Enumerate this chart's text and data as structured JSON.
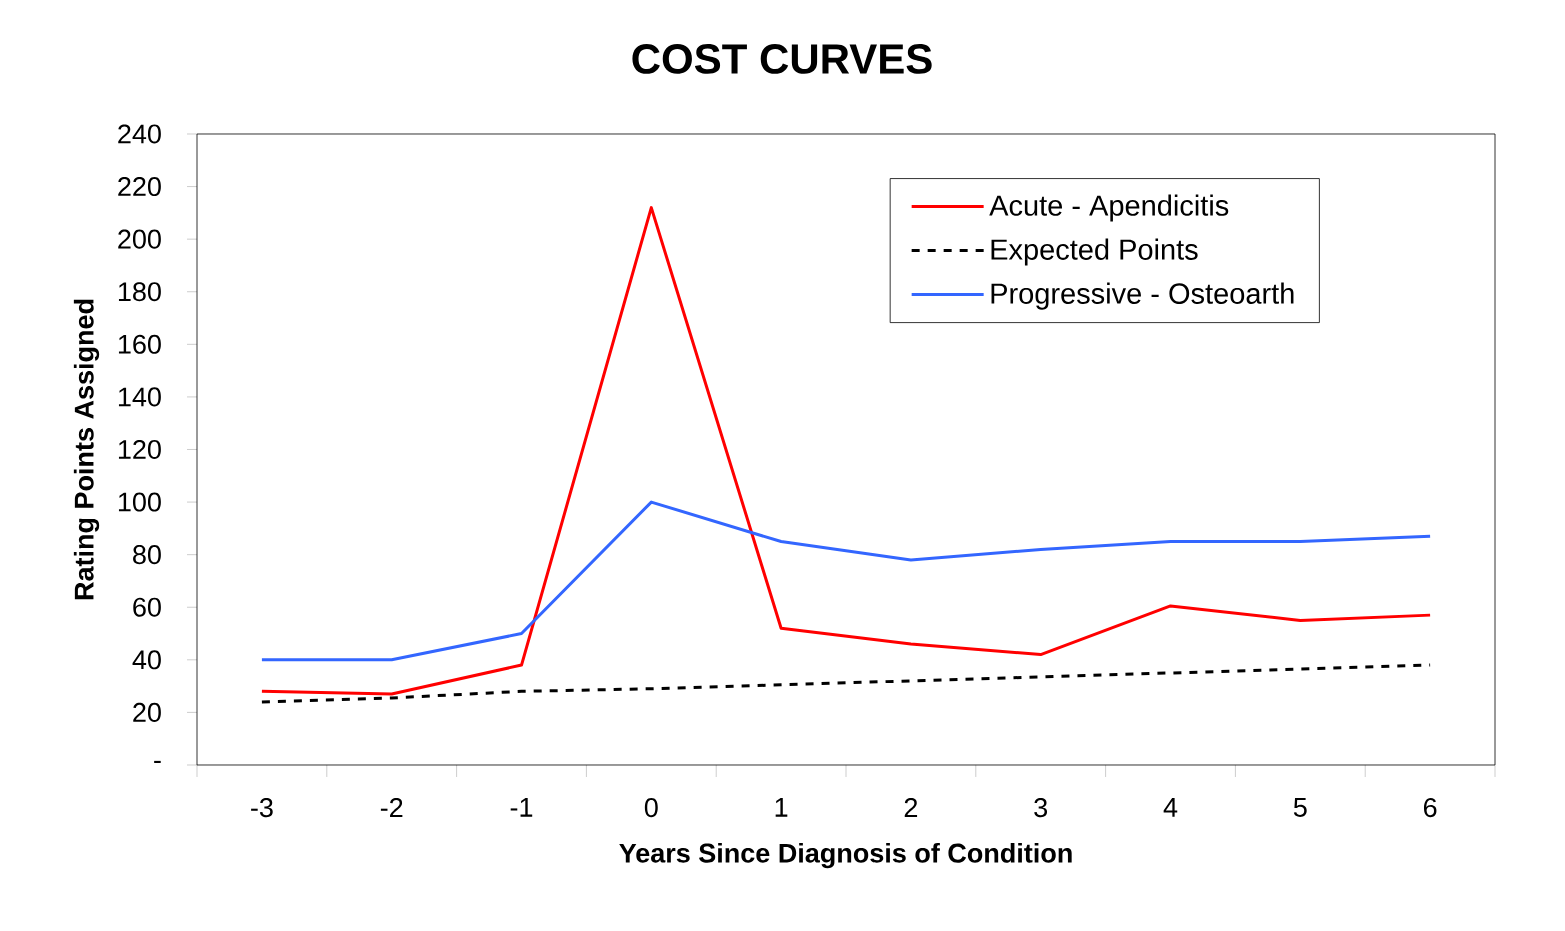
{
  "chart_data": {
    "type": "line",
    "title": "COST CURVES",
    "xlabel": "Years Since Diagnosis of Condition",
    "ylabel": "Rating Points Assigned",
    "categories": [
      "-3",
      "-2",
      "-1",
      "0",
      "1",
      "2",
      "3",
      "4",
      "5",
      "6"
    ],
    "series": [
      {
        "name": "Acute - Apendicitis",
        "color": "#ff0000",
        "line_style": "solid",
        "values": [
          28,
          27,
          38,
          212,
          52,
          46,
          42,
          60.5,
          55,
          57
        ]
      },
      {
        "name": "Expected Points",
        "color": "#000000",
        "line_style": "dashed",
        "values": [
          24,
          25.5,
          28,
          29,
          30.5,
          32,
          33.5,
          35,
          36.5,
          38
        ]
      },
      {
        "name": "Progressive - Osteoarth",
        "color": "#3366ff",
        "line_style": "solid",
        "values": [
          40,
          40,
          50,
          100,
          85,
          78,
          82,
          85,
          85,
          87
        ]
      }
    ],
    "ylim": [
      0,
      240
    ],
    "yticks": [
      {
        "value": 0,
        "label": "-"
      },
      20,
      40,
      60,
      80,
      100,
      120,
      140,
      160,
      180,
      200,
      220,
      240
    ],
    "grid": false,
    "legend": "top right",
    "marker": "none"
  }
}
